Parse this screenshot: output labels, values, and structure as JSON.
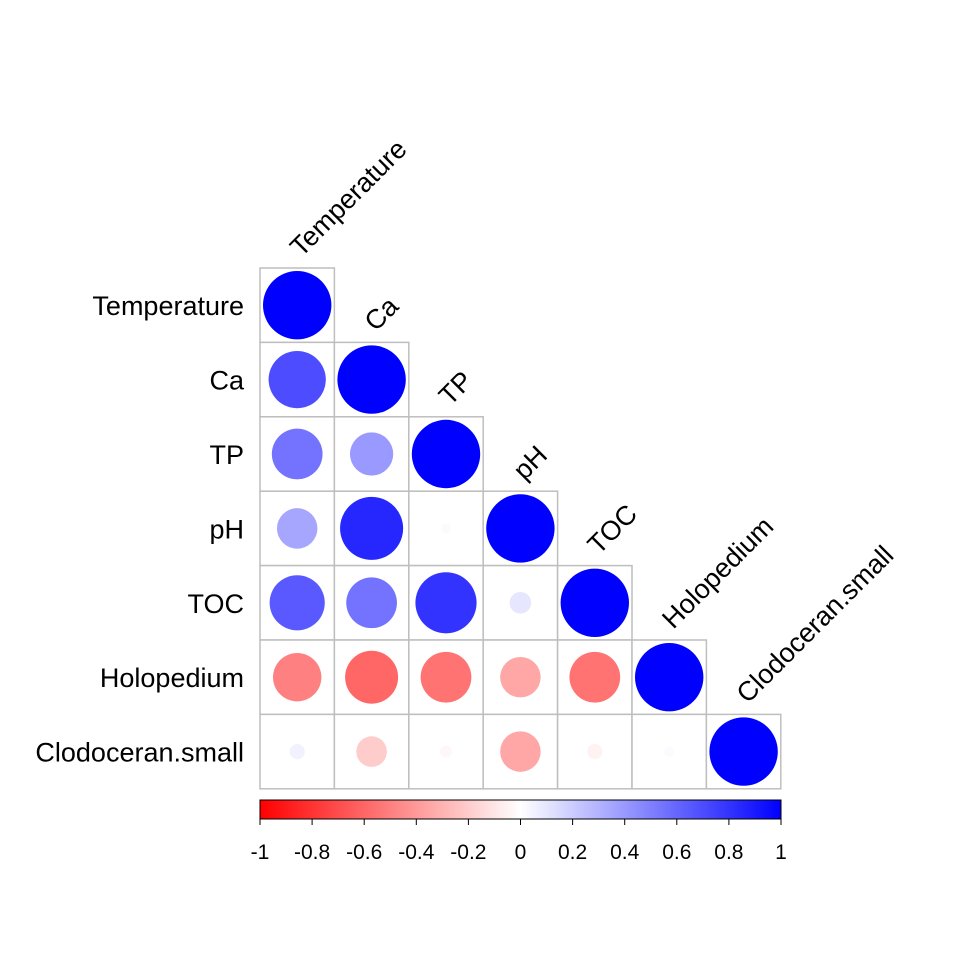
{
  "chart_data": {
    "type": "heatmap",
    "style": "correlogram-lower-triangle-circles",
    "variables": [
      "Temperature",
      "Ca",
      "TP",
      "pH",
      "TOC",
      "Holopedium",
      "Clodoceran.small"
    ],
    "matrix": [
      [
        1.0,
        0.7,
        0.55,
        0.35,
        0.65,
        -0.5,
        0.05
      ],
      [
        0.7,
        1.0,
        0.4,
        0.85,
        0.55,
        -0.6,
        -0.2
      ],
      [
        0.55,
        0.4,
        1.0,
        0.02,
        0.8,
        -0.55,
        -0.03
      ],
      [
        0.35,
        0.85,
        0.02,
        1.0,
        0.1,
        -0.35,
        -0.35
      ],
      [
        0.65,
        0.55,
        0.8,
        0.1,
        1.0,
        -0.55,
        -0.05
      ],
      [
        -0.5,
        -0.6,
        -0.55,
        -0.35,
        -0.55,
        1.0,
        0.02
      ],
      [
        0.05,
        -0.2,
        -0.03,
        -0.35,
        -0.05,
        0.02,
        1.0
      ]
    ],
    "colorbar": {
      "ticks": [
        "-1",
        "-0.8",
        "-0.6",
        "-0.4",
        "-0.2",
        "0",
        "0.2",
        "0.4",
        "0.6",
        "0.8",
        "1"
      ],
      "range": [
        -1,
        1
      ],
      "color_negative": "#ff0000",
      "color_zero": "#ffffff",
      "color_positive": "#0000ff"
    },
    "grid": true
  }
}
